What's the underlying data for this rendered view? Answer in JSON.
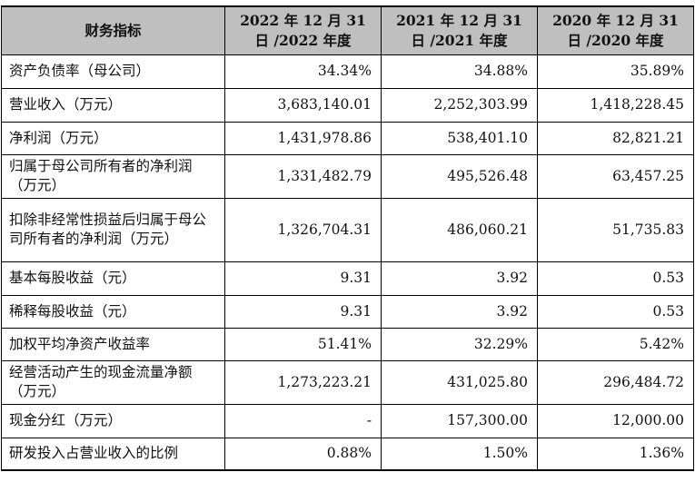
{
  "table": {
    "headers": [
      "财务指标",
      "2022 年 12 月 31 日 /2022 年度",
      "2021 年 12 月 31 日 /2021 年度",
      "2020 年 12 月 31 日 /2020 年度"
    ],
    "rows": [
      {
        "label": "资产负债率（母公司）",
        "values": [
          "34.34%",
          "34.88%",
          "35.89%"
        ]
      },
      {
        "label": "营业收入（万元）",
        "values": [
          "3,683,140.01",
          "2,252,303.99",
          "1,418,228.45"
        ]
      },
      {
        "label": "净利润（万元）",
        "values": [
          "1,431,978.86",
          "538,401.10",
          "82,821.21"
        ]
      },
      {
        "label": "归属于母公司所有者的净利润（万元）",
        "values": [
          "1,331,482.79",
          "495,526.48",
          "63,457.25"
        ]
      },
      {
        "label": "扣除非经常性损益后归属于母公司所有者的净利润（万元）",
        "values": [
          "1,326,704.31",
          "486,060.21",
          "51,735.83"
        ]
      },
      {
        "label": "基本每股收益（元）",
        "values": [
          "9.31",
          "3.92",
          "0.53"
        ]
      },
      {
        "label": "稀释每股收益（元）",
        "values": [
          "9.31",
          "3.92",
          "0.53"
        ]
      },
      {
        "label": "加权平均净资产收益率",
        "values": [
          "51.41%",
          "32.29%",
          "5.42%"
        ]
      },
      {
        "label": "经营活动产生的现金流量净额（万元）",
        "values": [
          "1,273,223.21",
          "431,025.80",
          "296,484.72"
        ]
      },
      {
        "label": "现金分红（万元）",
        "values": [
          "-",
          "157,300.00",
          "12,000.00"
        ]
      },
      {
        "label": "研发投入占营业收入的比例",
        "values": [
          "0.88%",
          "1.50%",
          "1.36%"
        ]
      }
    ]
  }
}
